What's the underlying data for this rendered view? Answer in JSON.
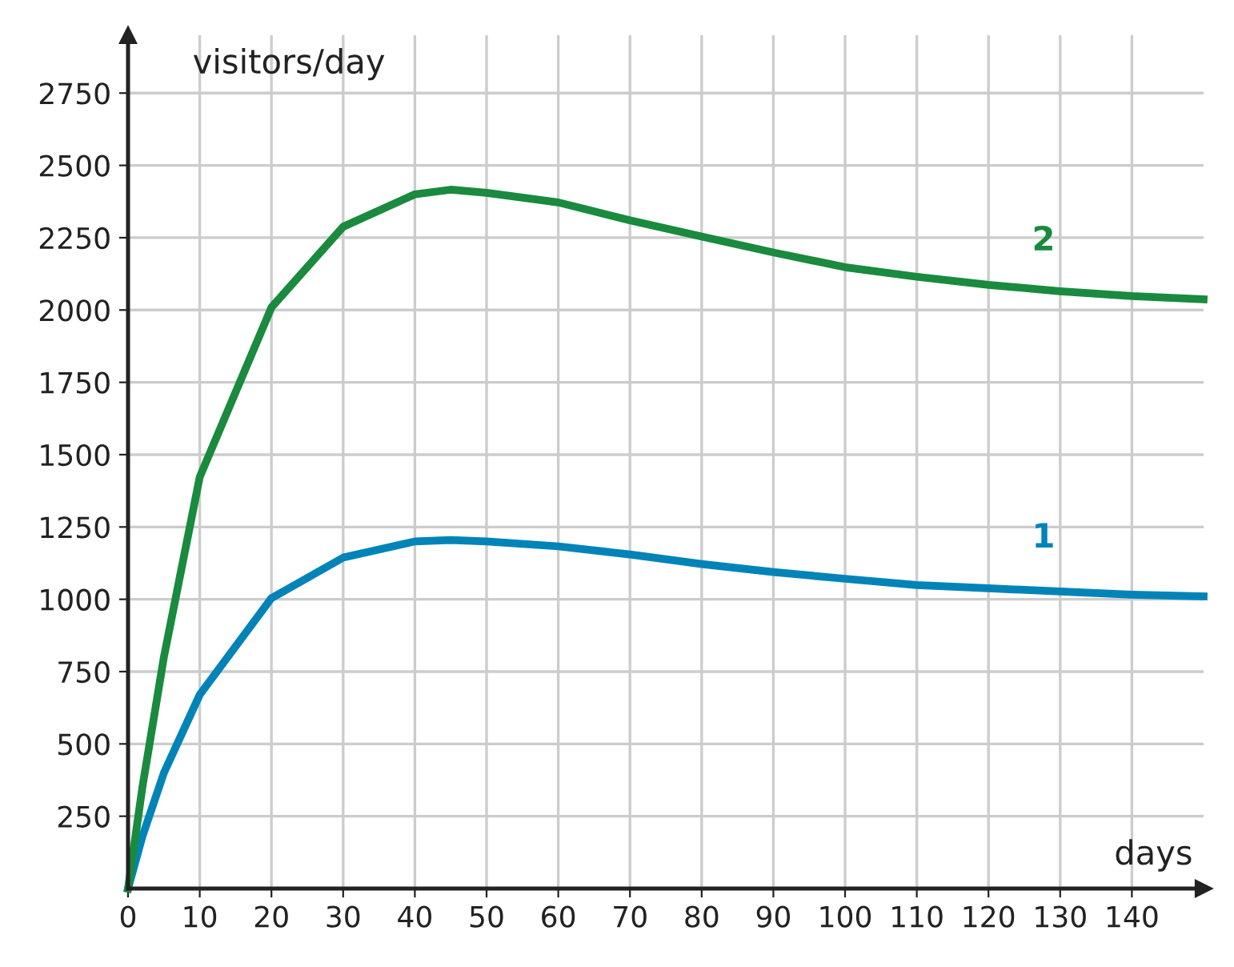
{
  "chart_data": {
    "type": "line",
    "xlabel": "days",
    "ylabel": "visitors/day",
    "xlim": [
      0,
      150
    ],
    "ylim": [
      0,
      2950
    ],
    "xticks": [
      0,
      10,
      20,
      30,
      40,
      50,
      60,
      70,
      80,
      90,
      100,
      110,
      120,
      130,
      140
    ],
    "yticks": [
      250,
      500,
      750,
      1000,
      1250,
      1500,
      1750,
      2000,
      2250,
      2500,
      2750
    ],
    "grid": true,
    "legend": false,
    "marker": "none",
    "line_style": "solid",
    "series": [
      {
        "name": "1",
        "color": "#0084b8",
        "x": [
          0,
          2,
          5,
          10,
          20,
          30,
          40,
          45,
          50,
          60,
          70,
          80,
          90,
          100,
          110,
          120,
          130,
          140,
          150
        ],
        "values": [
          0,
          180,
          400,
          670,
          1004,
          1144,
          1200,
          1205,
          1200,
          1183,
          1155,
          1122,
          1094,
          1071,
          1049,
          1038,
          1027,
          1016,
          1010
        ]
      },
      {
        "name": "2",
        "color": "#1a8a3e",
        "x": [
          0,
          2,
          5,
          10,
          20,
          30,
          40,
          45,
          50,
          60,
          70,
          80,
          90,
          100,
          110,
          120,
          130,
          140,
          150
        ],
        "values": [
          0,
          350,
          800,
          1423,
          2009,
          2288,
          2400,
          2416,
          2405,
          2372,
          2310,
          2254,
          2199,
          2148,
          2115,
          2087,
          2065,
          2048,
          2037
        ]
      }
    ]
  }
}
